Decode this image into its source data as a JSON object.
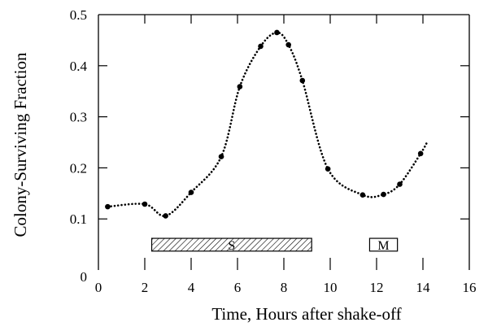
{
  "chart_data": {
    "type": "line",
    "title": "",
    "xlabel": "Time, Hours after shake-off",
    "ylabel": "Colony-Surviving Fraction",
    "xlim": [
      0,
      16
    ],
    "ylim": [
      0,
      0.5
    ],
    "xticks": [
      "0",
      "2",
      "4",
      "6",
      "8",
      "10",
      "12",
      "14",
      "16"
    ],
    "yticks": [
      "0",
      "0.1",
      "0.2",
      "0.3",
      "0.4",
      "0.5"
    ],
    "grid": false,
    "legend": "none",
    "series": [
      {
        "style": "dotted line with filled circle markers",
        "color": "#000000",
        "points": [
          {
            "x": 0.4,
            "y": 0.124
          },
          {
            "x": 2.0,
            "y": 0.129
          },
          {
            "x": 2.9,
            "y": 0.106
          },
          {
            "x": 4.0,
            "y": 0.152
          },
          {
            "x": 5.3,
            "y": 0.222
          },
          {
            "x": 6.1,
            "y": 0.359
          },
          {
            "x": 7.0,
            "y": 0.438
          },
          {
            "x": 7.7,
            "y": 0.465
          },
          {
            "x": 8.2,
            "y": 0.441
          },
          {
            "x": 8.8,
            "y": 0.371
          },
          {
            "x": 9.9,
            "y": 0.198
          },
          {
            "x": 11.4,
            "y": 0.147
          },
          {
            "x": 12.3,
            "y": 0.148
          },
          {
            "x": 13.0,
            "y": 0.168
          },
          {
            "x": 13.9,
            "y": 0.228
          },
          {
            "x": 14.2,
            "y": 0.252
          }
        ]
      }
    ],
    "phase_bands": [
      {
        "label": "S",
        "start": 2.3,
        "end": 9.2,
        "fill": "hatched"
      },
      {
        "label": "M",
        "start": 11.7,
        "end": 12.9,
        "fill": "none"
      }
    ]
  }
}
